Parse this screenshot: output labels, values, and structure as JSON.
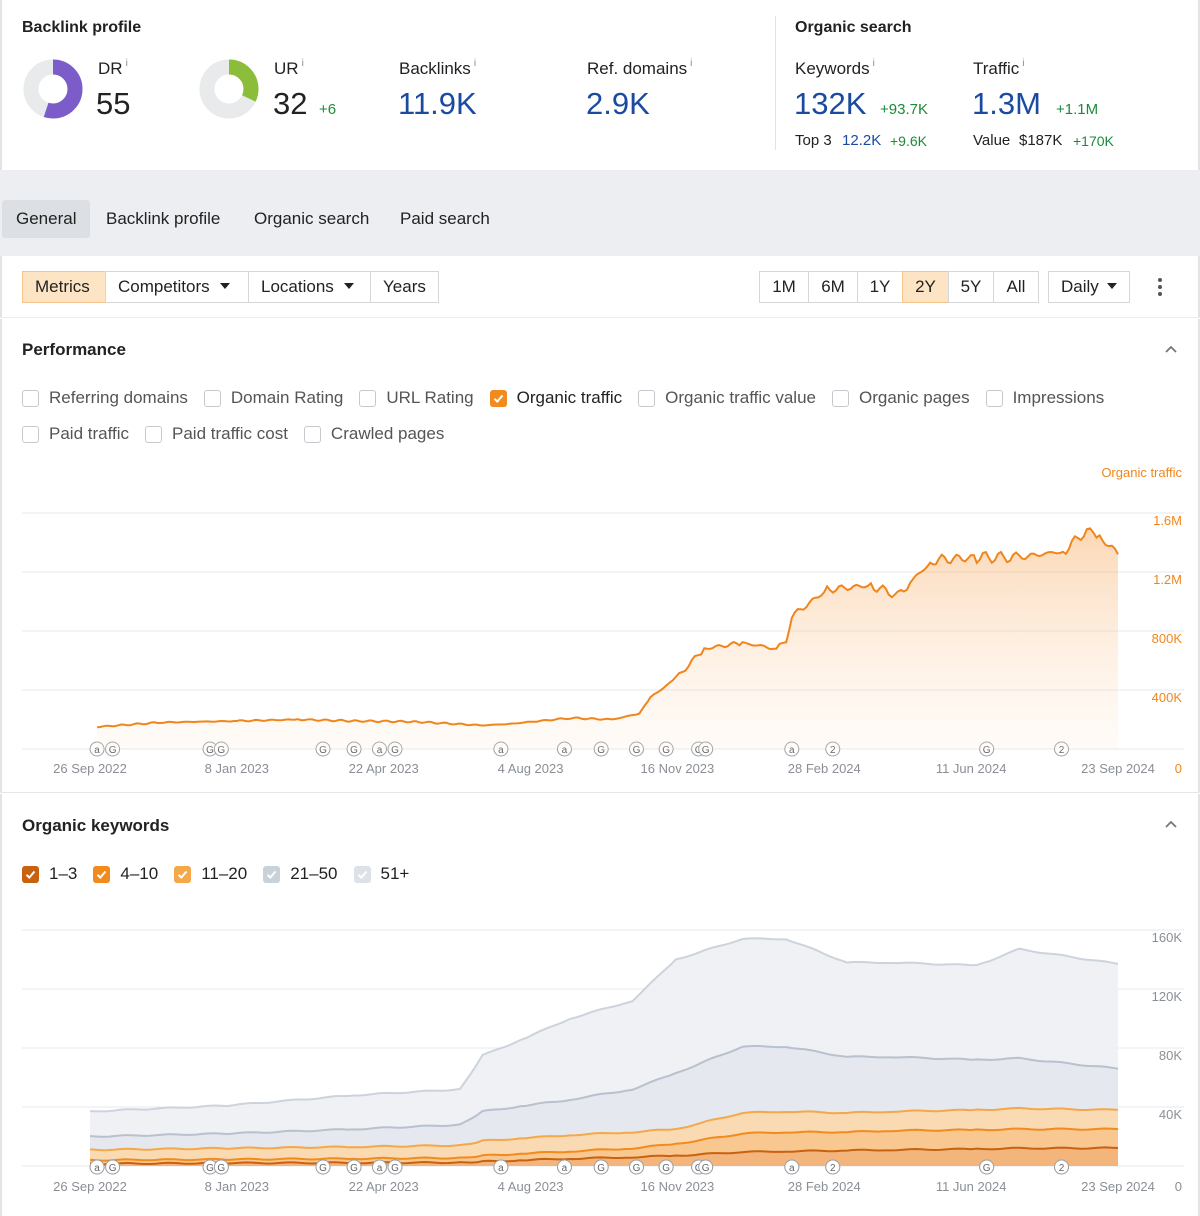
{
  "backlink_profile": {
    "title": "Backlink profile",
    "dr": {
      "label": "DR",
      "info": "i",
      "value": "55",
      "fraction": 0.55,
      "color": "#7b5cc9"
    },
    "ur": {
      "label": "UR",
      "info": "i",
      "value": "32",
      "delta": "+6",
      "fraction": 0.32,
      "color": "#8bbd3a"
    },
    "backlinks": {
      "label": "Backlinks",
      "info": "i",
      "value": "11.9K"
    },
    "ref_domains": {
      "label": "Ref. domains",
      "info": "i",
      "value": "2.9K"
    }
  },
  "organic_search": {
    "title": "Organic search",
    "keywords": {
      "label": "Keywords",
      "info": "i",
      "value": "132K",
      "delta": "+93.7K",
      "sub_label": "Top 3",
      "sub_value": "12.2K",
      "sub_delta": "+9.6K"
    },
    "traffic": {
      "label": "Traffic",
      "info": "i",
      "value": "1.3M",
      "delta": "+1.1M",
      "sub_label": "Value",
      "sub_value": "$187K",
      "sub_delta": "+170K"
    }
  },
  "tabs": [
    {
      "label": "General",
      "active": true
    },
    {
      "label": "Backlink profile",
      "active": false
    },
    {
      "label": "Organic search",
      "active": false
    },
    {
      "label": "Paid search",
      "active": false
    }
  ],
  "toolbar": {
    "metrics": "Metrics",
    "competitors": "Competitors",
    "locations": "Locations",
    "years": "Years",
    "ranges": [
      "1M",
      "6M",
      "1Y",
      "2Y",
      "5Y",
      "All"
    ],
    "active_range": "2Y",
    "interval": "Daily"
  },
  "performance": {
    "title": "Performance",
    "metrics_row1": [
      {
        "label": "Referring domains",
        "checked": false
      },
      {
        "label": "Domain Rating",
        "checked": false
      },
      {
        "label": "URL Rating",
        "checked": false
      },
      {
        "label": "Organic traffic",
        "checked": true
      },
      {
        "label": "Organic traffic value",
        "checked": false
      },
      {
        "label": "Organic pages",
        "checked": false
      },
      {
        "label": "Impressions",
        "checked": false
      }
    ],
    "metrics_row2": [
      {
        "label": "Paid traffic",
        "checked": false
      },
      {
        "label": "Paid traffic cost",
        "checked": false
      },
      {
        "label": "Crawled pages",
        "checked": false
      }
    ]
  },
  "organic_keywords": {
    "title": "Organic keywords",
    "legend": [
      {
        "label": "1–3",
        "color": "#c8620f",
        "checked": true
      },
      {
        "label": "4–10",
        "color": "#f28b1e",
        "checked": true
      },
      {
        "label": "11–20",
        "color": "#f5a84a",
        "checked": true
      },
      {
        "label": "21–50",
        "color": "#c9d1db",
        "checked": true
      },
      {
        "label": "51+",
        "color": "#dde2e9",
        "checked": true
      }
    ]
  },
  "chart_data": [
    {
      "type": "area",
      "series": [
        {
          "name": "Organic traffic",
          "color": "#f0861b",
          "x": [
            "2022-10-01",
            "2022-11-15",
            "2023-01-08",
            "2023-02-20",
            "2023-04-01",
            "2023-05-15",
            "2023-07-01",
            "2023-07-20",
            "2023-09-01",
            "2023-10-01",
            "2023-10-20",
            "2023-10-28",
            "2023-11-15",
            "2023-12-05",
            "2024-01-01",
            "2024-01-25",
            "2024-02-01",
            "2024-02-05",
            "2024-03-01",
            "2024-04-01",
            "2024-04-20",
            "2024-05-01",
            "2024-05-15",
            "2024-06-15",
            "2024-07-15",
            "2024-08-15",
            "2024-09-01",
            "2024-09-10",
            "2024-09-23"
          ],
          "values": [
            150000,
            180000,
            190000,
            200000,
            190000,
            185000,
            160000,
            170000,
            210000,
            200000,
            240000,
            350000,
            480000,
            680000,
            720000,
            680000,
            720000,
            900000,
            1080000,
            1110000,
            1040000,
            1150000,
            1280000,
            1300000,
            1300000,
            1340000,
            1480000,
            1440000,
            1320000
          ]
        }
      ],
      "yaxis_label": "Organic traffic",
      "yticks": [
        "1.6M",
        "1.2M",
        "800K",
        "400K",
        "0"
      ],
      "ylim": [
        0,
        1800000
      ],
      "xticks": [
        "26 Sep 2022",
        "8 Jan 2023",
        "22 Apr 2023",
        "4 Aug 2023",
        "16 Nov 2023",
        "28 Feb 2024",
        "11 Jun 2024",
        "23 Sep 2024"
      ],
      "grid": true
    },
    {
      "type": "area",
      "x": [
        "2022-09-26",
        "2023-01-01",
        "2023-04-01",
        "2023-06-15",
        "2023-07-01",
        "2023-08-01",
        "2023-09-01",
        "2023-10-15",
        "2023-11-15",
        "2024-01-01",
        "2024-02-01",
        "2024-03-15",
        "2024-04-15",
        "2024-06-15",
        "2024-07-15",
        "2024-09-23"
      ],
      "series": [
        {
          "name": "51+",
          "color": "#dde2e9",
          "values": [
            37000,
            41000,
            48000,
            52000,
            75000,
            87000,
            100000,
            112000,
            140000,
            154000,
            154000,
            138000,
            138000,
            136000,
            147000,
            137000
          ]
        },
        {
          "name": "21–50",
          "color": "#c9d1db",
          "values": [
            20000,
            22000,
            25000,
            28000,
            37000,
            41000,
            45000,
            52000,
            63000,
            81000,
            81000,
            74000,
            74000,
            72000,
            73000,
            66000
          ]
        },
        {
          "name": "11–20",
          "color": "#f5a84a",
          "values": [
            11000,
            12000,
            13000,
            14000,
            17000,
            19000,
            21000,
            23000,
            25000,
            36000,
            37000,
            36000,
            37000,
            38000,
            39000,
            38000
          ]
        },
        {
          "name": "4–10",
          "color": "#f28b1e",
          "values": [
            4000,
            4500,
            5000,
            5500,
            7000,
            8500,
            10000,
            12000,
            15000,
            22000,
            23000,
            23000,
            24000,
            24500,
            25000,
            25000
          ]
        },
        {
          "name": "1–3",
          "color": "#c8620f",
          "values": [
            1500,
            2000,
            2200,
            2400,
            3000,
            4000,
            5000,
            6000,
            7000,
            9500,
            10000,
            10500,
            11000,
            11500,
            12000,
            12200
          ]
        }
      ],
      "yticks": [
        "160K",
        "120K",
        "80K",
        "40K",
        "0"
      ],
      "ylim": [
        0,
        160000
      ],
      "xticks": [
        "26 Sep 2022",
        "8 Jan 2023",
        "22 Apr 2023",
        "4 Aug 2023",
        "16 Nov 2023",
        "28 Feb 2024",
        "11 Jun 2024",
        "23 Sep 2024"
      ],
      "grid": true
    }
  ],
  "annotations": [
    {
      "date": "2022-10-01",
      "mark": "a"
    },
    {
      "date": "2022-10-12",
      "mark": "G"
    },
    {
      "date": "2022-12-20",
      "mark": "G"
    },
    {
      "date": "2022-12-28",
      "mark": "G"
    },
    {
      "date": "2023-03-10",
      "mark": "G"
    },
    {
      "date": "2023-04-01",
      "mark": "G"
    },
    {
      "date": "2023-04-19",
      "mark": "a"
    },
    {
      "date": "2023-04-30",
      "mark": "G"
    },
    {
      "date": "2023-07-14",
      "mark": "a"
    },
    {
      "date": "2023-08-28",
      "mark": "a"
    },
    {
      "date": "2023-09-23",
      "mark": "G"
    },
    {
      "date": "2023-10-18",
      "mark": "G"
    },
    {
      "date": "2023-11-08",
      "mark": "G"
    },
    {
      "date": "2023-12-01",
      "mark": "G"
    },
    {
      "date": "2023-12-06",
      "mark": "G"
    },
    {
      "date": "2024-02-05",
      "mark": "a"
    },
    {
      "date": "2024-03-05",
      "mark": "2"
    },
    {
      "date": "2024-06-22",
      "mark": "G"
    },
    {
      "date": "2024-08-14",
      "mark": "2"
    }
  ]
}
